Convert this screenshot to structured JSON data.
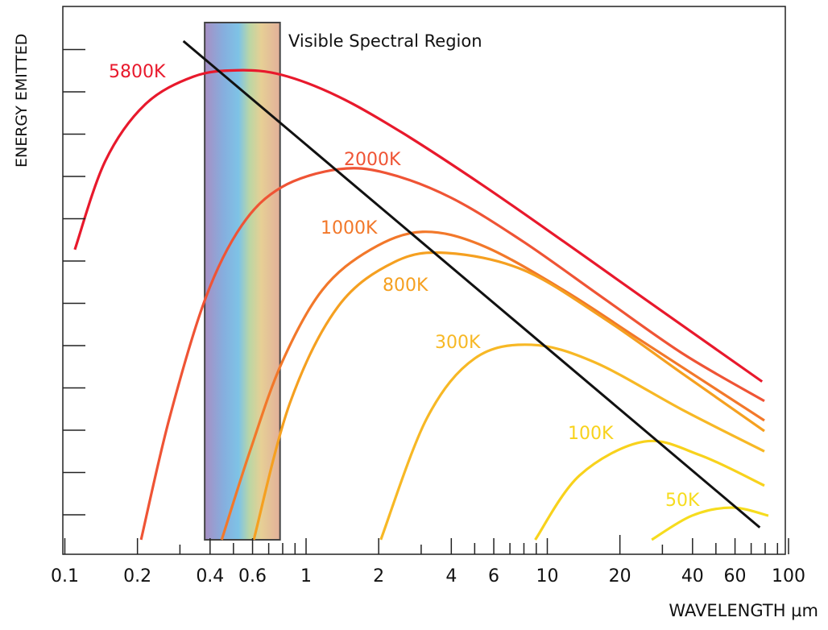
{
  "chart_data": {
    "type": "line",
    "title": "",
    "xlabel": "WAVELENGTH µm",
    "ylabel": "ENERGY EMITTED",
    "x_scale": "log",
    "xlim": [
      0.1,
      100
    ],
    "ylim": [
      0,
      12.5
    ],
    "x_ticks": [
      "0.1",
      "0.2",
      "0.4",
      "0.6",
      "1",
      "2",
      "4",
      "6",
      "10",
      "20",
      "40",
      "60",
      "100"
    ],
    "y_tick_labels_shown": false,
    "grid": false,
    "annotations": {
      "visible_region": {
        "label": "Visible Spectral Region",
        "x_range": [
          0.38,
          0.78
        ]
      },
      "peak_line": {
        "from": [
          0.31,
          12.2
        ],
        "to": [
          76,
          0.7
        ],
        "color": "#111111"
      }
    },
    "series": [
      {
        "name": "5800K",
        "color": "#e8192c",
        "x": [
          0.11,
          0.147,
          0.215,
          0.341,
          0.52,
          0.794,
          1.36,
          2.51,
          5.41,
          11.7,
          25.1,
          77.7
        ],
        "y": [
          7.27,
          9.36,
          10.7,
          11.36,
          11.51,
          11.4,
          10.89,
          10.03,
          8.79,
          7.46,
          6.12,
          4.15
        ]
      },
      {
        "name": "2000K",
        "color": "#ef5435",
        "x": [
          0.207,
          0.271,
          0.383,
          0.541,
          0.794,
          1.36,
          2.15,
          3.98,
          7.94,
          17.1,
          36.9,
          79.4
        ],
        "y": [
          0.41,
          3.27,
          6.12,
          7.84,
          8.75,
          9.17,
          9.08,
          8.5,
          7.46,
          6.12,
          4.79,
          3.69
        ]
      },
      {
        "name": "1000K",
        "color": "#f2782a",
        "x": [
          0.447,
          0.585,
          0.794,
          1.166,
          1.85,
          3.04,
          5.41,
          11.7,
          25.1,
          79.4
        ],
        "y": [
          0.41,
          2.5,
          4.6,
          6.31,
          7.27,
          7.69,
          7.36,
          6.31,
          5.08,
          3.23
        ]
      },
      {
        "name": "800K",
        "color": "#f5a020",
        "x": [
          0.607,
          0.858,
          1.36,
          2.33,
          3.83,
          7.94,
          17.1,
          36.9,
          79.4
        ],
        "y": [
          0.41,
          3.65,
          5.93,
          6.98,
          7.19,
          6.79,
          5.65,
          4.31,
          2.98
        ]
      },
      {
        "name": "300K",
        "color": "#f7b825",
        "x": [
          2.04,
          3.16,
          5.01,
          8.58,
          15.8,
          36.9,
          79.4
        ],
        "y": [
          0.41,
          3.27,
          4.7,
          5.02,
          4.6,
          3.46,
          2.5
        ]
      },
      {
        "name": "100K",
        "color": "#f8d21c",
        "x": [
          8.91,
          13.6,
          25.1,
          43.0,
          79.4
        ],
        "y": [
          0.41,
          1.93,
          2.73,
          2.41,
          1.69
        ]
      },
      {
        "name": "50K",
        "color": "#f6dc1e",
        "x": [
          27.1,
          39.8,
          58.4,
          82.5
        ],
        "y": [
          0.41,
          0.98,
          1.17,
          0.98
        ]
      }
    ]
  }
}
